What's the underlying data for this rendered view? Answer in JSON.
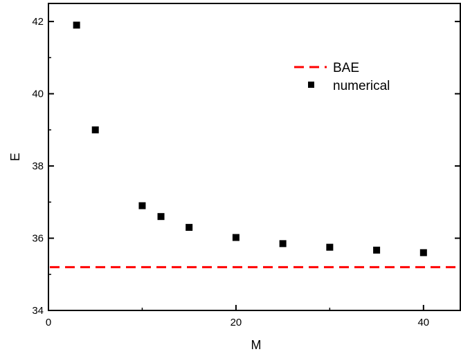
{
  "chart_data": {
    "type": "scatter",
    "title": "",
    "xlabel": "M",
    "ylabel": "E",
    "xlim": [
      0,
      44
    ],
    "ylim": [
      34,
      42.5
    ],
    "x_ticks": [
      0,
      20,
      40
    ],
    "y_ticks": [
      34,
      36,
      38,
      40,
      42
    ],
    "grid": false,
    "legend_position": "top-right",
    "series": [
      {
        "name": "BAE",
        "kind": "hline",
        "style": "dashed",
        "color": "#ff0000",
        "y": 35.2
      },
      {
        "name": "numerical",
        "kind": "scatter",
        "marker": "square",
        "color": "#000000",
        "x": [
          3,
          5,
          10,
          12,
          15,
          20,
          25,
          30,
          35,
          40
        ],
        "y": [
          41.9,
          39.0,
          36.9,
          36.6,
          36.3,
          36.02,
          35.85,
          35.75,
          35.67,
          35.6
        ]
      }
    ]
  }
}
